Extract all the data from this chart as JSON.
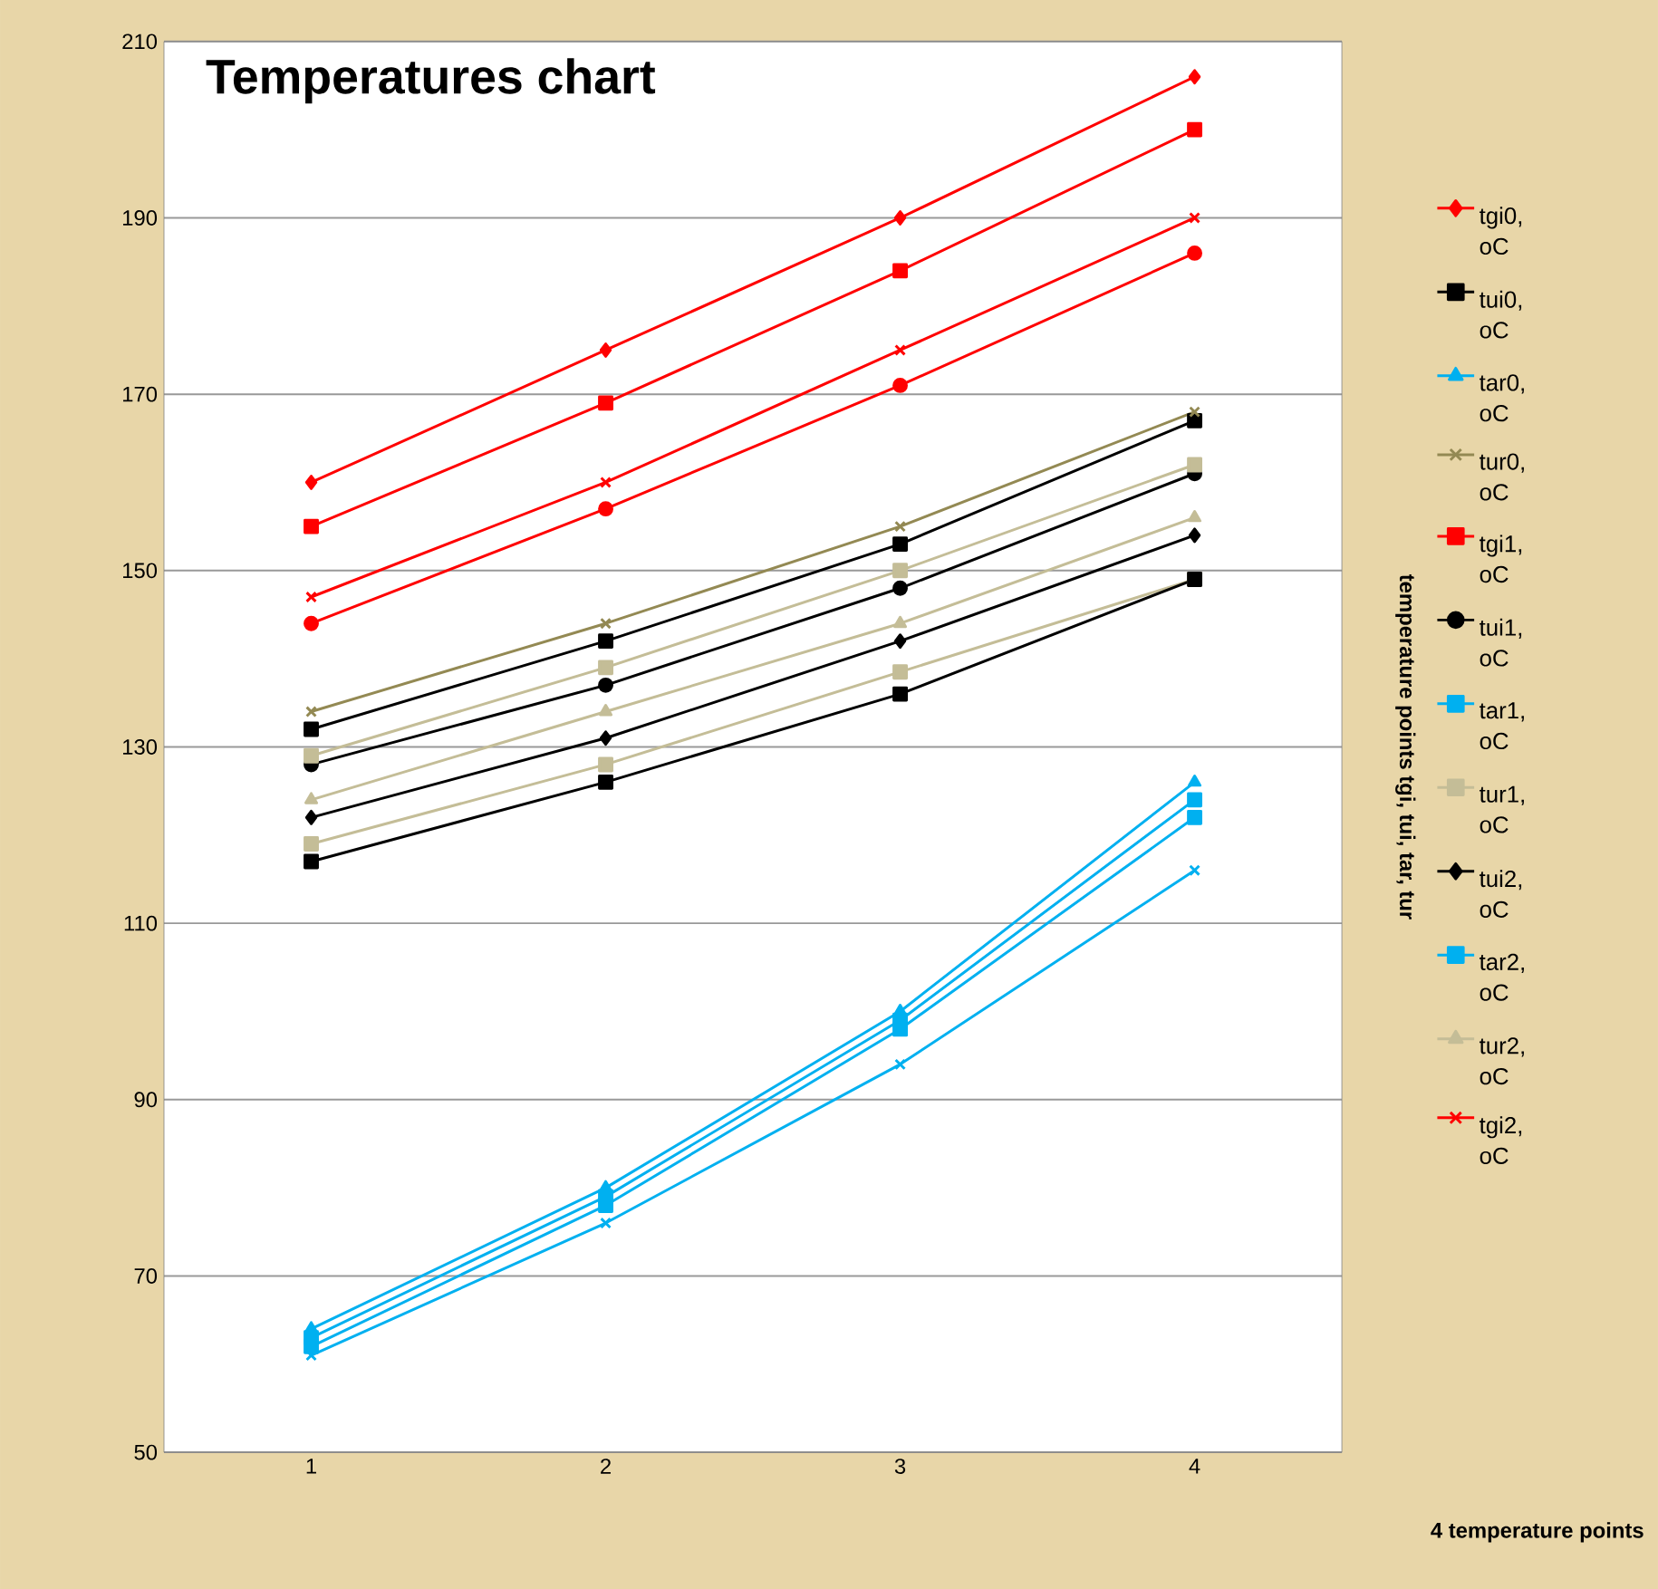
{
  "chart_data": {
    "type": "line",
    "title": "Temperatures chart",
    "xlabel": "4 temperature points",
    "ylabel": "temperature points tgi, tui, tar, tur",
    "categories": [
      "1",
      "2",
      "3",
      "4"
    ],
    "ylim": [
      50,
      210
    ],
    "yticks": [
      50,
      70,
      90,
      110,
      130,
      150,
      170,
      190,
      210
    ],
    "grid": "y",
    "legend": "right",
    "series": [
      {
        "name": "tgi0, oC",
        "color": "#ff0000",
        "marker": "diamond",
        "values": [
          160,
          175,
          190,
          206
        ]
      },
      {
        "name": "tui0, oC",
        "color": "#000000",
        "marker": "square",
        "values": [
          132,
          142,
          153,
          167
        ]
      },
      {
        "name": "tar0, oC",
        "color": "#00b0f0",
        "marker": "triangle",
        "values": [
          64,
          80,
          100,
          126
        ]
      },
      {
        "name": "tur0, oC",
        "color": "#938953",
        "marker": "cross",
        "values": [
          134,
          144,
          155,
          168
        ]
      },
      {
        "name": "tgi1, oC",
        "color": "#ff0000",
        "marker": "square",
        "values": [
          155,
          169,
          184,
          200
        ]
      },
      {
        "name": "tui1, oC",
        "color": "#000000",
        "marker": "circle",
        "values": [
          128,
          137,
          148,
          161
        ]
      },
      {
        "name": "tar1, oC",
        "color": "#00b0f0",
        "marker": "square",
        "values": [
          63,
          79,
          99,
          124
        ]
      },
      {
        "name": "tur1, oC",
        "color": "#c4bd97",
        "marker": "square",
        "values": [
          129,
          139,
          150,
          162
        ]
      },
      {
        "name": "tui2, oC",
        "color": "#000000",
        "marker": "diamond",
        "values": [
          122,
          131,
          142,
          154
        ]
      },
      {
        "name": "tar2, oC",
        "color": "#00b0f0",
        "marker": "square",
        "values": [
          62,
          78,
          98,
          122
        ]
      },
      {
        "name": "tur2, oC",
        "color": "#c4bd97",
        "marker": "triangle",
        "values": [
          124,
          134,
          144,
          156
        ]
      },
      {
        "name": "tgi2, oC",
        "color": "#ff0000",
        "marker": "cross",
        "values": [
          147,
          160,
          175,
          190
        ]
      },
      {
        "color": "#ff0000",
        "marker": "circle",
        "values": [
          144,
          157,
          171,
          186
        ]
      },
      {
        "color": "#c4bd97",
        "marker": "square",
        "values": [
          119,
          128,
          138.5,
          149
        ]
      },
      {
        "color": "#000000",
        "marker": "square",
        "values": [
          117,
          126,
          136,
          149
        ]
      },
      {
        "color": "#00b0f0",
        "marker": "cross",
        "values": [
          61,
          76,
          94,
          116
        ]
      }
    ]
  }
}
